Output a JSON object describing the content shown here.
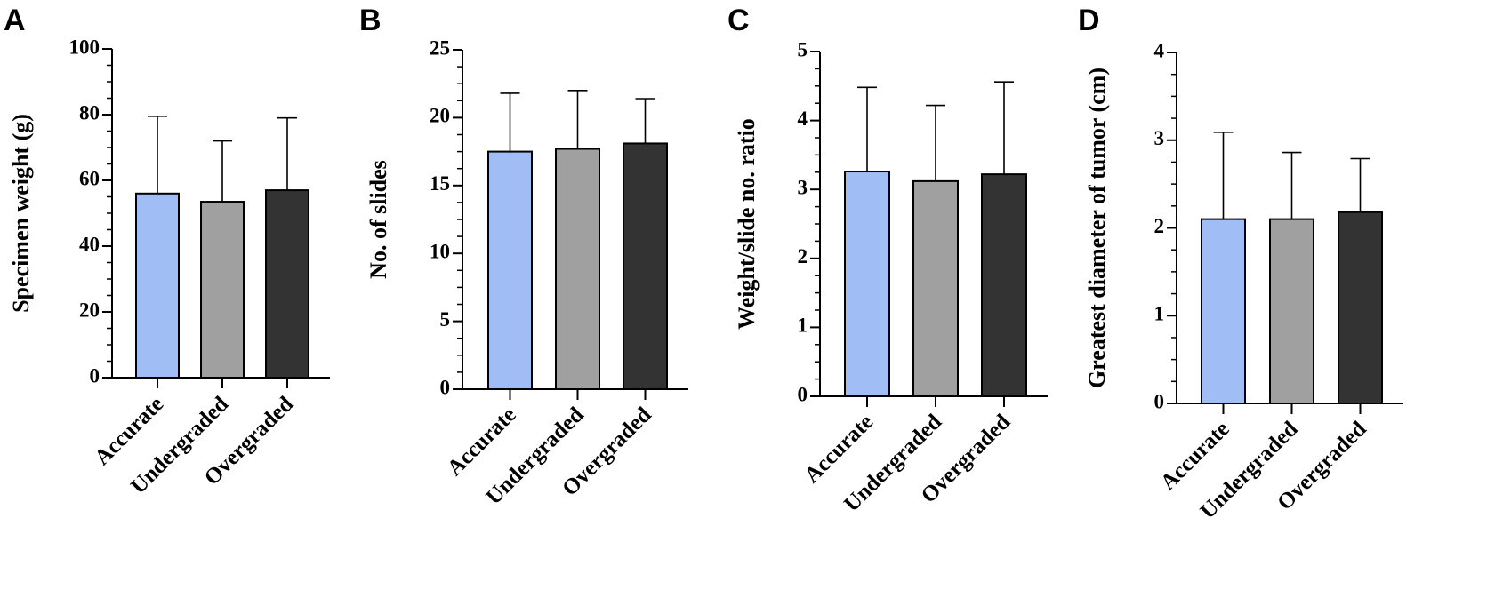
{
  "chart_data": [
    {
      "type": "bar",
      "panel": "A",
      "ylabel": "Specimen weight  (g)",
      "categories": [
        "Accurate",
        "Undergraded",
        "Overgraded"
      ],
      "values": [
        56,
        53.5,
        57
      ],
      "error": [
        23.5,
        18.5,
        22
      ],
      "ylim": [
        0,
        100
      ],
      "yticks": [
        0,
        20,
        40,
        60,
        80,
        100
      ],
      "colors": [
        "#a0bef5",
        "#a0a0a0",
        "#333333"
      ]
    },
    {
      "type": "bar",
      "panel": "B",
      "ylabel": "No. of slides",
      "categories": [
        "Accurate",
        "Undergraded",
        "Overgraded"
      ],
      "values": [
        17.5,
        17.7,
        18.1
      ],
      "error": [
        4.3,
        4.3,
        3.3
      ],
      "ylim": [
        0,
        25
      ],
      "yticks": [
        0,
        5,
        10,
        15,
        20,
        25
      ],
      "colors": [
        "#a0bef5",
        "#a0a0a0",
        "#333333"
      ]
    },
    {
      "type": "bar",
      "panel": "C",
      "ylabel": "Weight/slide no. ratio",
      "categories": [
        "Accurate",
        "Undergraded",
        "Overgraded"
      ],
      "values": [
        3.26,
        3.12,
        3.22
      ],
      "error": [
        1.22,
        1.1,
        1.34
      ],
      "ylim": [
        0,
        5
      ],
      "yticks": [
        0,
        1,
        2,
        3,
        4,
        5
      ],
      "colors": [
        "#a0bef5",
        "#a0a0a0",
        "#333333"
      ]
    },
    {
      "type": "bar",
      "panel": "D",
      "ylabel": "Greatest diameter of tumor  (cm)",
      "categories": [
        "Accurate",
        "Undergraded",
        "Overgraded"
      ],
      "values": [
        2.1,
        2.1,
        2.18
      ],
      "error": [
        0.99,
        0.76,
        0.61
      ],
      "ylim": [
        0,
        4
      ],
      "yticks": [
        0,
        1,
        2,
        3,
        4
      ],
      "colors": [
        "#a0bef5",
        "#a0a0a0",
        "#333333"
      ]
    }
  ]
}
